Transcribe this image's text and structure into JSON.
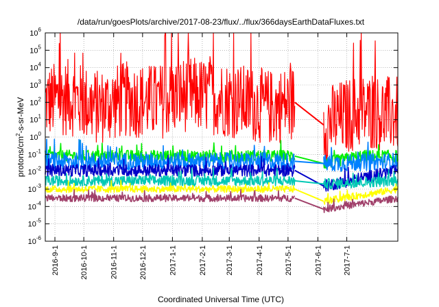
{
  "chart_data": {
    "type": "line",
    "title": "/data/run/goesPlots/archive/2017-08-23/flux/../flux/366daysEarthDataFluxes.txt",
    "xlabel": "Coordinated Universal Time (UTC)",
    "ylabel": {
      "prefix": "protons/cm",
      "superscript": "2",
      "suffix": "-s-sr-MeV"
    },
    "yscale": "log",
    "ylim": [
      1e-06,
      1000000.0
    ],
    "y_ticks": [
      {
        "base": "10",
        "exp": "-6",
        "value": 1e-06
      },
      {
        "base": "10",
        "exp": "-5",
        "value": 1e-05
      },
      {
        "base": "10",
        "exp": "-4",
        "value": 0.0001
      },
      {
        "base": "10",
        "exp": "-3",
        "value": 0.001
      },
      {
        "base": "10",
        "exp": "-2",
        "value": 0.01
      },
      {
        "base": "10",
        "exp": "-1",
        "value": 0.1
      },
      {
        "base": "10",
        "exp": "0",
        "value": 1
      },
      {
        "base": "10",
        "exp": "1",
        "value": 10
      },
      {
        "base": "10",
        "exp": "2",
        "value": 100
      },
      {
        "base": "10",
        "exp": "3",
        "value": 1000
      },
      {
        "base": "10",
        "exp": "4",
        "value": 10000
      },
      {
        "base": "10",
        "exp": "5",
        "value": 100000
      },
      {
        "base": "10",
        "exp": "6",
        "value": 1000000
      }
    ],
    "xlim": [
      "2016-08-22",
      "2017-08-23"
    ],
    "x_ticks": [
      {
        "label": "2016-9-1",
        "date": "2016-09-01"
      },
      {
        "label": "2016-10-1",
        "date": "2016-10-01"
      },
      {
        "label": "2016-11-1",
        "date": "2016-11-01"
      },
      {
        "label": "2016-12-1",
        "date": "2016-12-01"
      },
      {
        "label": "2017-1-1",
        "date": "2017-01-01"
      },
      {
        "label": "2017-2-1",
        "date": "2017-02-01"
      },
      {
        "label": "2017-3-1",
        "date": "2017-03-01"
      },
      {
        "label": "2017-4-1",
        "date": "2017-04-01"
      },
      {
        "label": "2017-5-1",
        "date": "2017-05-01"
      },
      {
        "label": "2017-6-1",
        "date": "2017-06-01"
      },
      {
        "label": "2017-7-1",
        "date": "2017-07-01"
      }
    ],
    "grid": true,
    "data_gap": [
      "2017-05-08",
      "2017-06-07"
    ],
    "series": [
      {
        "color": "#ff0000",
        "median": 100,
        "spread": 2.2,
        "x": [
          "2016-08-22",
          "2016-09-15",
          "2016-10-15",
          "2016-11-15",
          "2016-12-15",
          "2017-01-15",
          "2017-02-15",
          "2017-03-15",
          "2017-04-15",
          "2017-05-08",
          "2017-06-07",
          "2017-06-20",
          "2017-07-15",
          "2017-08-23"
        ],
        "y": [
          100,
          200,
          50,
          150,
          100,
          300,
          200,
          100,
          50,
          100,
          5,
          10,
          30,
          20
        ]
      },
      {
        "color": "#00ee00",
        "median": 0.08,
        "spread": 0.35,
        "x": [
          "2016-08-22",
          "2017-05-08",
          "2017-06-07",
          "2017-07-15",
          "2017-08-23"
        ],
        "y": [
          0.08,
          0.08,
          0.03,
          0.08,
          0.08
        ]
      },
      {
        "color": "#0080ff",
        "median": 0.04,
        "spread": 0.5,
        "x": [
          "2016-08-22",
          "2017-05-08",
          "2017-06-07",
          "2017-08-23"
        ],
        "y": [
          0.04,
          0.04,
          0.03,
          0.04
        ]
      },
      {
        "color": "#0000c8",
        "median": 0.012,
        "spread": 0.35,
        "x": [
          "2016-08-22",
          "2017-05-08",
          "2017-06-07",
          "2017-08-23"
        ],
        "y": [
          0.012,
          0.012,
          0.0015,
          0.012
        ]
      },
      {
        "color": "#00c8b4",
        "median": 0.003,
        "spread": 0.3,
        "x": [
          "2016-08-22",
          "2017-05-08",
          "2017-06-07",
          "2017-08-23"
        ],
        "y": [
          0.003,
          0.003,
          0.002,
          0.003
        ]
      },
      {
        "color": "#ffff00",
        "median": 0.001,
        "spread": 0.2,
        "x": [
          "2016-08-22",
          "2017-05-08",
          "2017-06-07",
          "2017-08-23"
        ],
        "y": [
          0.001,
          0.001,
          0.0002,
          0.001
        ]
      },
      {
        "color": "#a0406a",
        "median": 0.0003,
        "spread": 0.2,
        "x": [
          "2016-08-22",
          "2017-05-08",
          "2017-06-07",
          "2017-08-23"
        ],
        "y": [
          0.0003,
          0.0003,
          7e-05,
          0.0003
        ]
      }
    ]
  }
}
